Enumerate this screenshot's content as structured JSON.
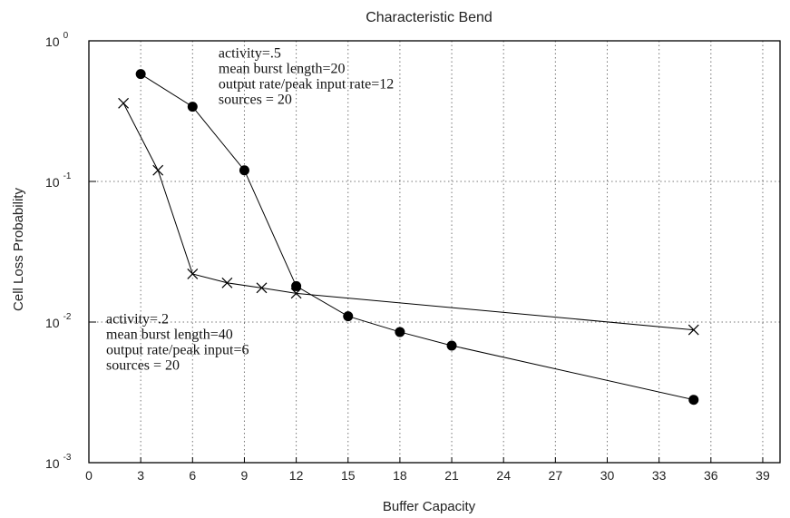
{
  "chart_data": {
    "type": "line",
    "title": "Characteristic Bend",
    "xlabel": "Buffer Capacity",
    "ylabel": "Cell Loss Probability",
    "xlim": [
      0,
      40
    ],
    "ylim": [
      0.001,
      1
    ],
    "yscale": "log",
    "grid": true,
    "xticks": [
      0,
      3,
      6,
      9,
      12,
      15,
      18,
      21,
      24,
      27,
      30,
      33,
      36,
      39
    ],
    "yticks": [
      {
        "value": 1,
        "base": "10",
        "exp": "0"
      },
      {
        "value": 0.1,
        "base": "10",
        "exp": "-1"
      },
      {
        "value": 0.01,
        "base": "10",
        "exp": "-2"
      },
      {
        "value": 0.001,
        "base": "10",
        "exp": "-3"
      }
    ],
    "series": [
      {
        "marker": "circle",
        "color": "#000000",
        "x": [
          3,
          6,
          9,
          12,
          15,
          18,
          21,
          35
        ],
        "y": [
          0.58,
          0.34,
          0.12,
          0.018,
          0.011,
          0.0085,
          0.0068,
          0.0028
        ]
      },
      {
        "marker": "x",
        "color": "#000000",
        "x": [
          2,
          4,
          6,
          8,
          10,
          12,
          35
        ],
        "y": [
          0.36,
          0.12,
          0.022,
          0.019,
          0.0175,
          0.016,
          0.0088
        ]
      }
    ],
    "annotations": [
      {
        "lines": [
          "activity=.5",
          "mean burst length=20",
          "output rate/peak input rate=12",
          "sources = 20"
        ],
        "x": 7.5,
        "y": 0.76
      },
      {
        "lines": [
          "activity=.2",
          "mean burst length=40",
          "output rate/peak input=6",
          "sources = 20"
        ],
        "x": 1.0,
        "y": 0.0098
      }
    ]
  }
}
